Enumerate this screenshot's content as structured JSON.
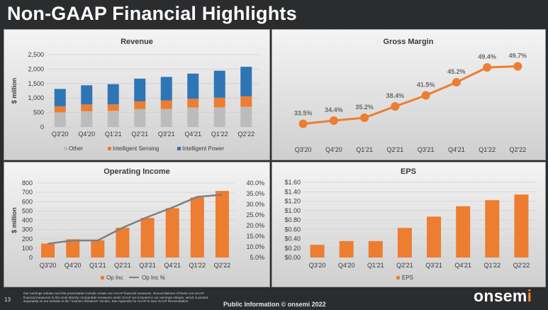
{
  "slide": {
    "title": "Non-GAAP Financial Highlights",
    "page_number": "13",
    "disclaimer": "Our earnings release and this presentation include certain non-GAAP financial measures. Reconciliations of these non-GAAP financial measures to the most directly comparable measures under GAAP are included in our earnings release, which is posted separately on our website in the \"Investor Relations\" section. See Appendix for GAAP to Non-GAAP Reconciliation",
    "footer_center": "Public Information © onsemi 2022",
    "logo": "onsemi",
    "logo_mark": "i"
  },
  "colors": {
    "other": "#bcbcbc",
    "intelligent_sensing": "#ed7d31",
    "intelligent_power": "#2e75b6",
    "orange": "#ed7d31",
    "line_gray": "#7f7f7f"
  },
  "chart_data": [
    {
      "type": "bar",
      "stacked": true,
      "title": "Revenue",
      "ylabel": "$ million",
      "ylim": [
        0,
        2500
      ],
      "yticks": [
        "0",
        "500",
        "1,000",
        "1,500",
        "2,000",
        "2,500"
      ],
      "yticks_values": [
        0,
        500,
        1000,
        1500,
        2000,
        2500
      ],
      "grid": true,
      "legend": "bottom",
      "categories": [
        "Q3'20",
        "Q4'20",
        "Q1'21",
        "Q2'21",
        "Q3'21",
        "Q4'21",
        "Q1'22",
        "Q2'22"
      ],
      "series": [
        {
          "name": "Other",
          "color": "#bcbcbc",
          "values": [
            505,
            545,
            560,
            620,
            620,
            675,
            680,
            700
          ]
        },
        {
          "name": "Intelligent Sensing",
          "color": "#ed7d31",
          "values": [
            210,
            235,
            220,
            265,
            295,
            300,
            330,
            360
          ]
        },
        {
          "name": "Intelligent Power",
          "color": "#2e75b6",
          "values": [
            600,
            660,
            700,
            785,
            815,
            870,
            935,
            1020
          ]
        }
      ]
    },
    {
      "type": "line",
      "title": "Gross Margin",
      "ylim": [
        30,
        52
      ],
      "grid": false,
      "categories": [
        "Q3'20",
        "Q4'20",
        "Q1'21",
        "Q2'21",
        "Q3'21",
        "Q4'21",
        "Q1'22",
        "Q2'22"
      ],
      "series": [
        {
          "color": "#ed7d31",
          "values": [
            33.5,
            34.4,
            35.2,
            38.4,
            41.5,
            45.2,
            49.4,
            49.7
          ]
        }
      ],
      "data_labels": [
        "33.5%",
        "34.4%",
        "35.2%",
        "38.4%",
        "41.5%",
        "45.2%",
        "49.4%",
        "49.7%"
      ]
    },
    {
      "type": "bar",
      "combo_line": true,
      "title": "Operating Income",
      "ylabel": "$ million",
      "ylim": [
        0,
        800
      ],
      "yticks": [
        "0",
        "100",
        "200",
        "300",
        "400",
        "500",
        "600",
        "700",
        "800"
      ],
      "yticks_values": [
        0,
        100,
        200,
        300,
        400,
        500,
        600,
        700,
        800
      ],
      "y2lim": [
        5,
        40
      ],
      "y2ticks": [
        "5.0%",
        "10.0%",
        "15.0%",
        "20.0%",
        "25.0%",
        "30.0%",
        "35.0%",
        "40.0%"
      ],
      "y2ticks_values": [
        5,
        10,
        15,
        20,
        25,
        30,
        35,
        40
      ],
      "grid": true,
      "legend": "bottom",
      "categories": [
        "Q3'20",
        "Q4'20",
        "Q1'21",
        "Q2'21",
        "Q3'21",
        "Q4'21",
        "Q1'22",
        "Q2'22"
      ],
      "series": [
        {
          "name": "Op Inc",
          "color": "#ed7d31",
          "kind": "bar",
          "values": [
            150,
            195,
            185,
            320,
            425,
            530,
            645,
            715
          ]
        },
        {
          "name": "Op Inc %",
          "color": "#7f7f7f",
          "kind": "line",
          "axis": "right",
          "values": [
            11.5,
            13.0,
            13.0,
            19.0,
            24.0,
            28.5,
            33.5,
            34.5
          ]
        }
      ]
    },
    {
      "type": "bar",
      "title": "EPS",
      "ylim": [
        0,
        1.6
      ],
      "yticks": [
        "$0.00",
        "$0.20",
        "$0.40",
        "$0.60",
        "$0.80",
        "$1.00",
        "$1.20",
        "$1.40",
        "$1.60"
      ],
      "yticks_values": [
        0,
        0.2,
        0.4,
        0.6,
        0.8,
        1.0,
        1.2,
        1.4,
        1.6
      ],
      "grid": true,
      "legend": "bottom",
      "categories": [
        "Q3'20",
        "Q4'20",
        "Q1'21",
        "Q2'21",
        "Q3'21",
        "Q4'21",
        "Q1'22",
        "Q2'22"
      ],
      "series": [
        {
          "name": "EPS",
          "color": "#ed7d31",
          "values": [
            0.27,
            0.35,
            0.35,
            0.63,
            0.87,
            1.09,
            1.22,
            1.34
          ]
        }
      ]
    }
  ]
}
